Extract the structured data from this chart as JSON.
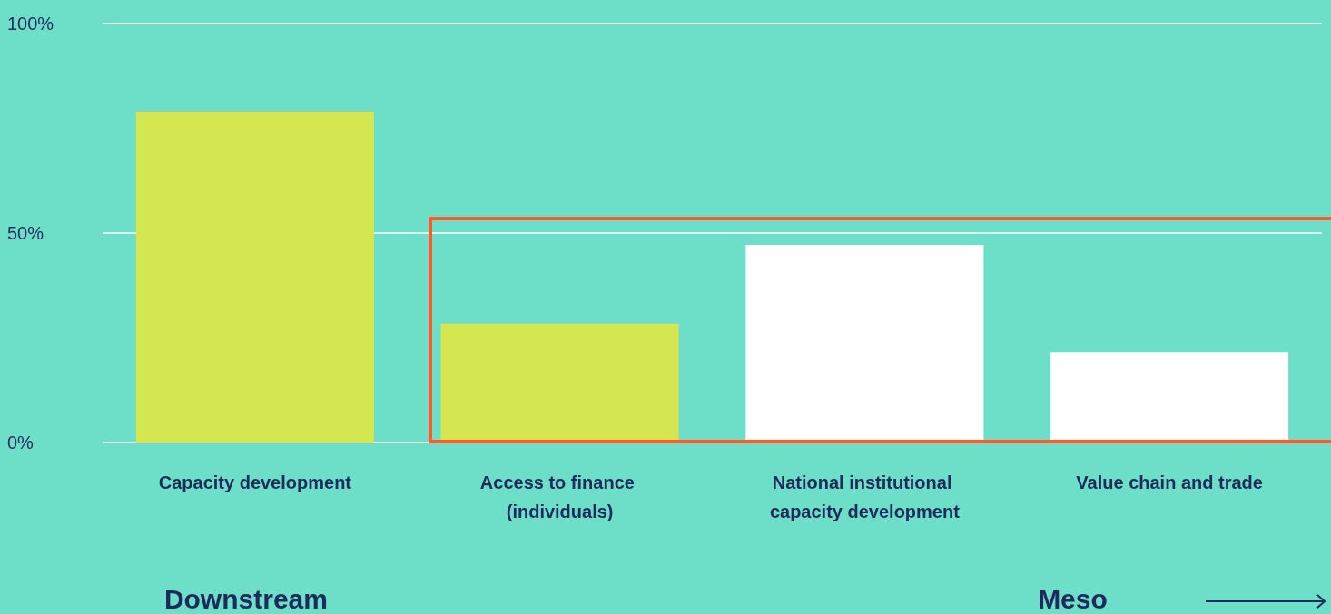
{
  "chart_data": {
    "type": "bar",
    "categories": [
      "Capacity development",
      "Access to finance (individuals)",
      "National institutional capacity development",
      "Value chain and trade"
    ],
    "values": [
      79,
      28.4,
      47.2,
      21.6
    ],
    "colors": [
      "#d4e650",
      "#d4e650",
      "#ffffff",
      "#ffffff"
    ],
    "ylim": [
      0,
      100
    ],
    "yticks": [
      {
        "value": 0,
        "label": "0%"
      },
      {
        "value": 50,
        "label": "50%"
      },
      {
        "value": 100,
        "label": "100%"
      }
    ],
    "grid": "y",
    "annotations": [
      "Downstream",
      "Meso"
    ]
  }
}
